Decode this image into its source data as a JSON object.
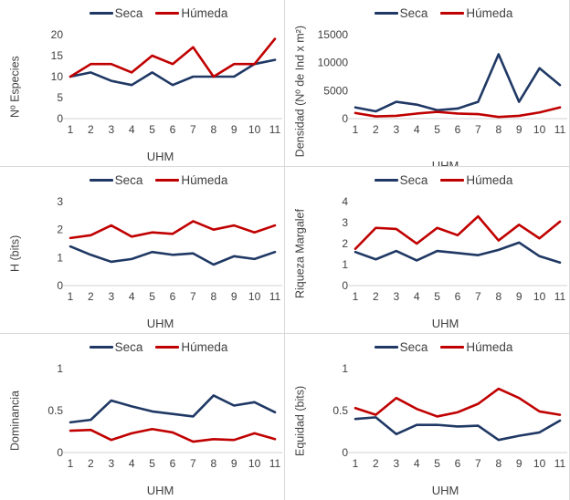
{
  "colors": {
    "seca": "#1f3864",
    "humeda": "#c00000",
    "axis_line": "#d9d9d9",
    "text": "#404040"
  },
  "chart_data": [
    {
      "type": "line",
      "title": "",
      "ylabel": "Nº Especies",
      "xlabel": "UHM",
      "x": [
        "1",
        "2",
        "3",
        "4",
        "5",
        "6",
        "7",
        "8",
        "9",
        "10",
        "11"
      ],
      "ylim": [
        0,
        20
      ],
      "yticks": [
        0,
        5,
        10,
        15,
        20
      ],
      "legend_position": "top",
      "grid": false,
      "series": [
        {
          "name": "Seca",
          "color": "#1f3864",
          "values": [
            10,
            11,
            9,
            8,
            11,
            8,
            10,
            10,
            10,
            13,
            14
          ]
        },
        {
          "name": "Húmeda",
          "color": "#c00000",
          "values": [
            10,
            13,
            13,
            11,
            15,
            13,
            17,
            10,
            13,
            13,
            19
          ]
        }
      ]
    },
    {
      "type": "line",
      "title": "",
      "ylabel": "Densidad (Nº de Ind x m²)",
      "xlabel": "UHM",
      "x": [
        "1",
        "2",
        "3",
        "4",
        "5",
        "6",
        "7",
        "8",
        "9",
        "10",
        "11"
      ],
      "ylim": [
        0,
        15000
      ],
      "yticks": [
        0,
        5000,
        10000,
        15000
      ],
      "legend_position": "top",
      "grid": false,
      "series": [
        {
          "name": "Seca",
          "color": "#1f3864",
          "values": [
            2000,
            1300,
            3000,
            2500,
            1500,
            1800,
            3000,
            11500,
            3000,
            9000,
            6000
          ]
        },
        {
          "name": "Húmeda",
          "color": "#c00000",
          "values": [
            1000,
            400,
            500,
            900,
            1200,
            900,
            800,
            300,
            500,
            1100,
            2000
          ]
        }
      ]
    },
    {
      "type": "line",
      "title": "",
      "ylabel": "H (bits)",
      "xlabel": "UHM",
      "x": [
        "1",
        "2",
        "3",
        "4",
        "5",
        "6",
        "7",
        "8",
        "9",
        "10",
        "11"
      ],
      "ylim": [
        0,
        3
      ],
      "yticks": [
        0,
        1,
        2,
        3
      ],
      "legend_position": "top",
      "grid": false,
      "series": [
        {
          "name": "Seca",
          "color": "#1f3864",
          "values": [
            1.4,
            1.1,
            0.85,
            0.95,
            1.2,
            1.1,
            1.15,
            0.75,
            1.05,
            0.95,
            1.2
          ]
        },
        {
          "name": "Húmeda",
          "color": "#c00000",
          "values": [
            1.7,
            1.8,
            2.15,
            1.75,
            1.9,
            1.85,
            2.3,
            2.0,
            2.15,
            1.9,
            2.15
          ]
        }
      ]
    },
    {
      "type": "line",
      "title": "",
      "ylabel": "Riqueza Margalef",
      "xlabel": "UHM",
      "x": [
        "1",
        "2",
        "3",
        "4",
        "5",
        "6",
        "7",
        "8",
        "9",
        "10",
        "11"
      ],
      "ylim": [
        0,
        4
      ],
      "yticks": [
        0,
        1,
        2,
        3,
        4
      ],
      "legend_position": "top",
      "grid": false,
      "series": [
        {
          "name": "Seca",
          "color": "#1f3864",
          "values": [
            1.6,
            1.25,
            1.65,
            1.2,
            1.65,
            1.55,
            1.45,
            1.7,
            2.05,
            1.4,
            1.1
          ]
        },
        {
          "name": "Húmeda",
          "color": "#c00000",
          "values": [
            1.75,
            2.75,
            2.7,
            2.0,
            2.75,
            2.4,
            3.3,
            2.15,
            2.9,
            2.25,
            3.05
          ]
        }
      ]
    },
    {
      "type": "line",
      "title": "",
      "ylabel": "Dominancia",
      "xlabel": "UHM",
      "x": [
        "1",
        "2",
        "3",
        "4",
        "5",
        "6",
        "7",
        "8",
        "9",
        "10",
        "11"
      ],
      "ylim": [
        0,
        1
      ],
      "yticks": [
        0,
        0.5,
        1
      ],
      "legend_position": "top",
      "grid": false,
      "series": [
        {
          "name": "Seca",
          "color": "#1f3864",
          "values": [
            0.36,
            0.39,
            0.62,
            0.55,
            0.49,
            0.46,
            0.43,
            0.68,
            0.56,
            0.6,
            0.48
          ]
        },
        {
          "name": "Húmeda",
          "color": "#c00000",
          "values": [
            0.26,
            0.27,
            0.15,
            0.23,
            0.28,
            0.24,
            0.13,
            0.16,
            0.15,
            0.23,
            0.16
          ]
        }
      ]
    },
    {
      "type": "line",
      "title": "",
      "ylabel": "Equidad (bits)",
      "xlabel": "UHM",
      "x": [
        "1",
        "2",
        "3",
        "4",
        "5",
        "6",
        "7",
        "8",
        "9",
        "10",
        "11"
      ],
      "ylim": [
        0,
        1
      ],
      "yticks": [
        0,
        0.5,
        1
      ],
      "legend_position": "top",
      "grid": false,
      "series": [
        {
          "name": "Seca",
          "color": "#1f3864",
          "values": [
            0.4,
            0.42,
            0.22,
            0.33,
            0.33,
            0.31,
            0.32,
            0.15,
            0.2,
            0.24,
            0.38
          ]
        },
        {
          "name": "Húmeda",
          "color": "#c00000",
          "values": [
            0.53,
            0.45,
            0.65,
            0.52,
            0.43,
            0.48,
            0.58,
            0.76,
            0.65,
            0.49,
            0.45
          ]
        }
      ]
    }
  ]
}
